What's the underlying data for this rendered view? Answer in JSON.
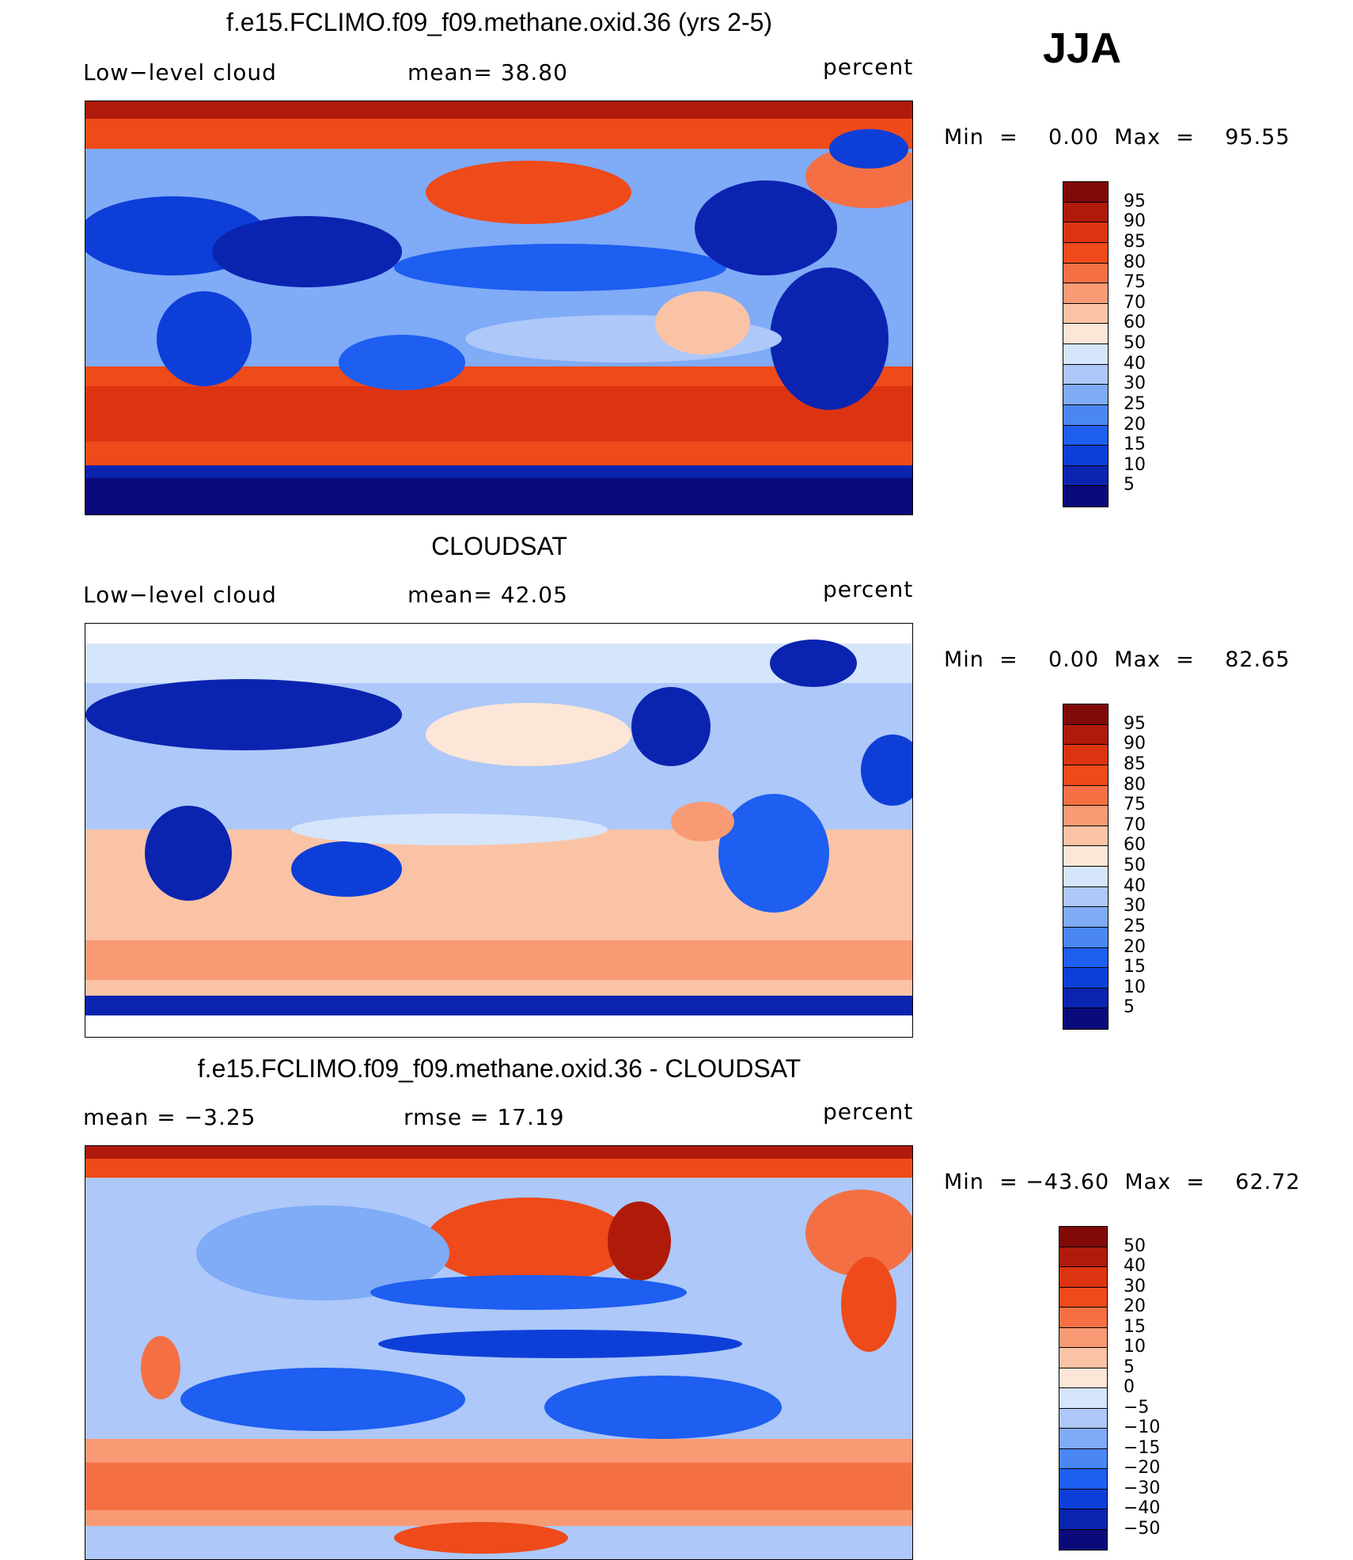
{
  "season": "JJA",
  "colors": {
    "seq_scale": [
      "#0a0a7a",
      "#0b24b0",
      "#0d3fd8",
      "#1e5ef0",
      "#4a87f5",
      "#7fabf7",
      "#adc8f9",
      "#d5e5fb",
      "#fde6d8",
      "#fbc3a6",
      "#f89a74",
      "#f47044",
      "#ee4a1a",
      "#dc3410",
      "#b01a0a",
      "#7f0a08"
    ],
    "diff_scale": [
      "#0a0a7a",
      "#0b24b0",
      "#0d3fd8",
      "#1e5ef0",
      "#4a87f5",
      "#7fabf7",
      "#adc8f9",
      "#d5e5fb",
      "#fde6d8",
      "#fbc3a6",
      "#f89a74",
      "#f47044",
      "#ee4a1a",
      "#dc3410",
      "#b01a0a",
      "#7f0a08"
    ]
  },
  "panels": [
    {
      "title": "f.e15.FCLIMO.f09_f09.methane.oxid.36 (yrs 2-5)",
      "left_label": "Low−level cloud",
      "center_label": "mean=   38.80",
      "right_label": "percent",
      "minmax": "Min  =    0.00  Max  =    95.55",
      "levels": [
        "95",
        "90",
        "85",
        "80",
        "75",
        "70",
        "60",
        "50",
        "40",
        "30",
        "25",
        "20",
        "15",
        "10",
        "5"
      ],
      "scale": "seq"
    },
    {
      "title": "CLOUDSAT",
      "left_label": "Low−level cloud",
      "center_label": "mean=   42.05",
      "right_label": "percent",
      "minmax": "Min  =    0.00  Max  =    82.65",
      "levels": [
        "95",
        "90",
        "85",
        "80",
        "75",
        "70",
        "60",
        "50",
        "40",
        "30",
        "25",
        "20",
        "15",
        "10",
        "5"
      ],
      "scale": "seq"
    },
    {
      "title": "f.e15.FCLIMO.f09_f09.methane.oxid.36 - CLOUDSAT",
      "left_label": "mean  =    −3.25",
      "center_label": "rmse  =    17.19",
      "right_label": "percent",
      "minmax": "Min  = −43.60  Max  =    62.72",
      "levels": [
        "50",
        "40",
        "30",
        "20",
        "15",
        "10",
        "5",
        "0",
        "−5",
        "−10",
        "−15",
        "−20",
        "−30",
        "−40",
        "−50"
      ],
      "scale": "diff"
    }
  ]
}
